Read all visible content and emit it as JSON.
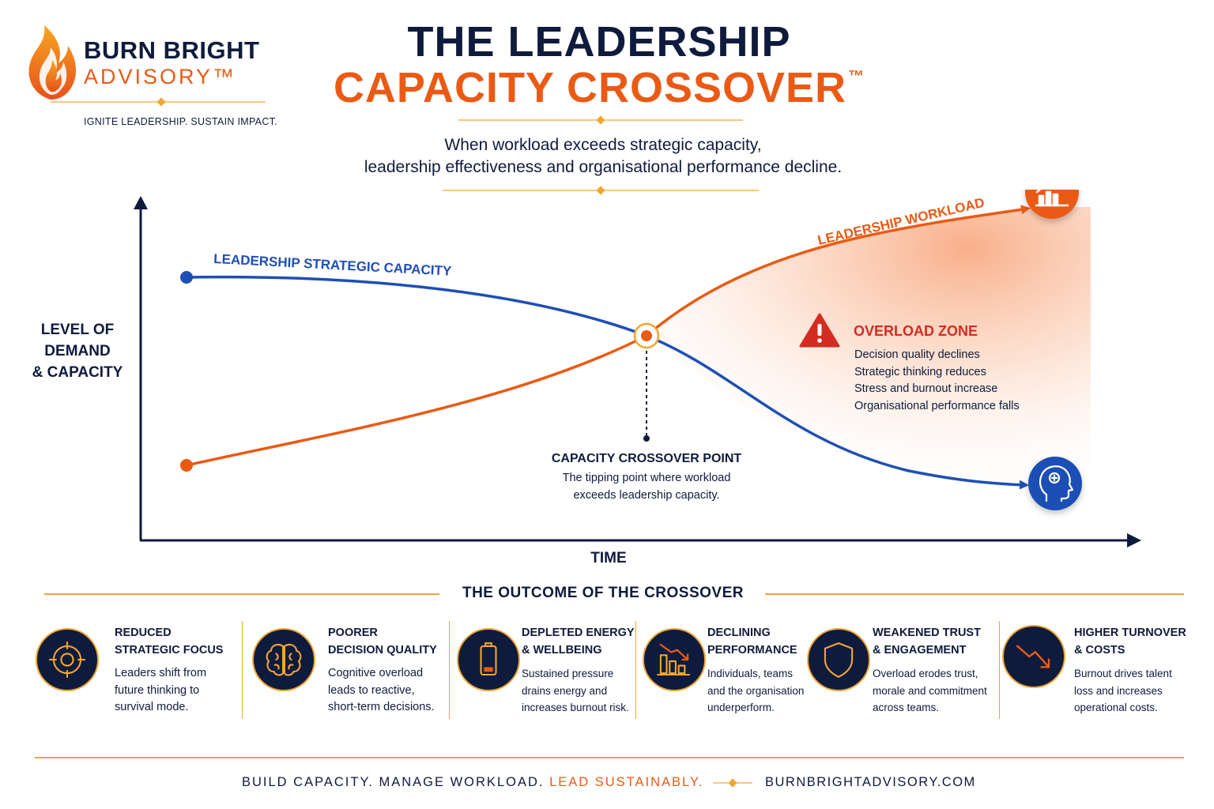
{
  "brand": {
    "name": "BURN BRIGHT",
    "sub": "ADVISORY™",
    "tagline": "IGNITE LEADERSHIP. SUSTAIN IMPACT."
  },
  "header": {
    "title_line1": "THE LEADERSHIP",
    "title_line2": "CAPACITY CROSSOVER",
    "title_mark": "™",
    "subtitle_line1": "When workload exceeds strategic capacity,",
    "subtitle_line2": "leadership effectiveness and organisational performance decline."
  },
  "chart": {
    "y_axis_label": "LEVEL OF DEMAND & CAPACITY",
    "x_axis_label": "TIME",
    "capacity_label": "LEADERSHIP STRATEGIC CAPACITY",
    "workload_label": "LEADERSHIP WORKLOAD",
    "crossover": {
      "title": "CAPACITY CROSSOVER POINT",
      "desc_line1": "The tipping point where workload",
      "desc_line2": "exceeds leadership capacity."
    },
    "overload": {
      "title": "OVERLOAD ZONE",
      "items": [
        "Decision quality declines",
        "Strategic thinking reduces",
        "Stress and burnout increase",
        "Organisational performance falls"
      ]
    },
    "icons": {
      "workload": "trending-up-chart-icon",
      "capacity": "brain-head-icon",
      "warning": "warning-triangle-icon"
    }
  },
  "outcomes": {
    "heading": "THE OUTCOME OF THE CROSSOVER",
    "items": [
      {
        "title_1": "REDUCED",
        "title_2": "STRATEGIC FOCUS",
        "desc_1": "Leaders shift from",
        "desc_2": "future thinking to",
        "desc_3": "survival mode.",
        "icon": "target-icon"
      },
      {
        "title_1": "POORER",
        "title_2": "DECISION QUALITY",
        "desc_1": "Cognitive overload",
        "desc_2": "leads to reactive,",
        "desc_3": "short-term decisions.",
        "icon": "brain-icon"
      },
      {
        "title_1": "DEPLETED ENERGY",
        "title_2": "& WELLBEING",
        "desc_1": "Sustained pressure",
        "desc_2": "drains energy and",
        "desc_3": "increases burnout risk.",
        "icon": "low-battery-icon"
      },
      {
        "title_1": "DECLINING",
        "title_2": "PERFORMANCE",
        "desc_1": "Individuals, teams",
        "desc_2": "and the organisation",
        "desc_3": "underperform.",
        "icon": "declining-bars-icon"
      },
      {
        "title_1": "WEAKENED TRUST",
        "title_2": "& ENGAGEMENT",
        "desc_1": "Overload erodes trust,",
        "desc_2": "morale and commitment",
        "desc_3": "across teams.",
        "icon": "shield-icon"
      },
      {
        "title_1": "HIGHER TURNOVER",
        "title_2": "& COSTS",
        "desc_1": "Burnout drives talent",
        "desc_2": "loss and increases",
        "desc_3": "operational costs.",
        "icon": "downtrend-arrow-icon"
      }
    ]
  },
  "footer": {
    "slogan": "BUILD CAPACITY. MANAGE WORKLOAD.",
    "slogan_accent": "LEAD SUSTAINABLY.",
    "url": "BURNBRIGHTADVISORY.COM"
  },
  "colors": {
    "navy": "#0f1b3d",
    "orange": "#ea5a14",
    "blue": "#1f4fb5",
    "gold": "#f1a632",
    "red": "#d42c22"
  }
}
